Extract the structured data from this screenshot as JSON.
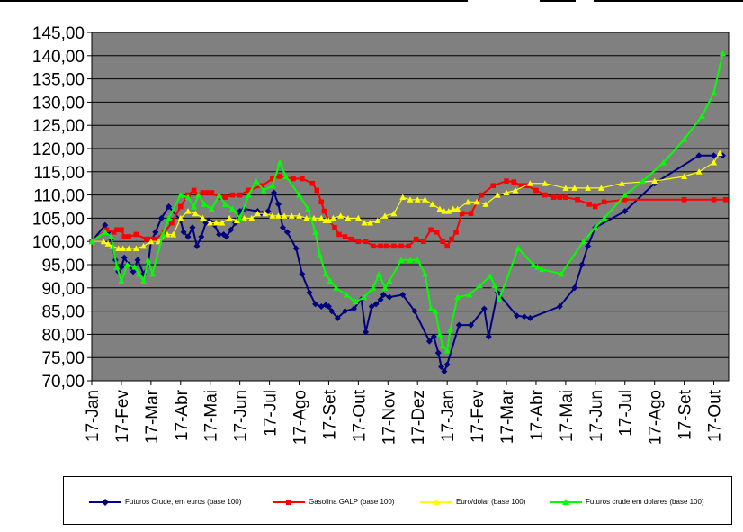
{
  "chart_data": {
    "type": "line",
    "title": "",
    "xlabel": "",
    "ylabel": "",
    "ylim": [
      70,
      145
    ],
    "yticks": [
      "70,00",
      "75,00",
      "80,00",
      "85,00",
      "90,00",
      "95,00",
      "100,00",
      "105,00",
      "110,00",
      "115,00",
      "120,00",
      "125,00",
      "130,00",
      "135,00",
      "140,00",
      "145,00"
    ],
    "xlim": [
      0,
      21.5
    ],
    "xticks": [
      "17-Jan",
      "17-Fev",
      "17-Mar",
      "17-Abr",
      "17-Mai",
      "17-Jun",
      "17-Jul",
      "17-Ago",
      "17-Set",
      "17-Out",
      "17-Nov",
      "17-Dez",
      "17-Jan",
      "17-Fev",
      "17-Mar",
      "17-Abr",
      "17-Mai",
      "17-Jun",
      "17-Jul",
      "17-Ago",
      "17-Set",
      "17-Out"
    ],
    "grid": true,
    "legend_position": "bottom",
    "series": [
      {
        "name": "Futuros Crude, em euros (base 100)",
        "color": "#000080",
        "marker": "diamond",
        "x": [
          0,
          0.45,
          0.55,
          0.65,
          0.8,
          0.9,
          1.0,
          1.1,
          1.25,
          1.4,
          1.55,
          1.75,
          1.9,
          2.0,
          2.15,
          2.35,
          2.6,
          3.0,
          3.1,
          3.25,
          3.4,
          3.55,
          3.7,
          3.85,
          3.95,
          4.05,
          4.15,
          4.3,
          4.45,
          4.55,
          4.7,
          4.85,
          5.0,
          5.15,
          5.6,
          5.75,
          5.95,
          6.15,
          6.3,
          6.45,
          6.6,
          6.9,
          7.1,
          7.35,
          7.55,
          7.75,
          7.9,
          8.0,
          8.1,
          8.3,
          8.55,
          8.85,
          9.1,
          9.25,
          9.45,
          9.6,
          9.75,
          9.85,
          10.05,
          10.5,
          10.9,
          11.4,
          11.55,
          11.7,
          11.8,
          11.9,
          12.0,
          12.4,
          12.8,
          13.25,
          13.4,
          13.7,
          14.35,
          14.6,
          14.8,
          15.8,
          16.3,
          16.55,
          16.75,
          17.0,
          18.0,
          19.0,
          20.5,
          21.0,
          21.3
        ],
        "y": [
          100,
          103.5,
          102,
          100.5,
          96,
          93.5,
          94.5,
          96.5,
          95,
          93.5,
          96,
          93,
          95,
          100,
          102,
          105,
          107.5,
          104.5,
          102,
          101,
          103,
          99,
          101,
          104,
          104.5,
          104,
          103.5,
          101.5,
          101.5,
          101,
          102.5,
          104,
          106.5,
          107,
          106.5,
          106,
          106.5,
          110.5,
          108,
          103,
          102,
          98.5,
          93,
          89,
          86.5,
          86,
          86.3,
          86,
          85,
          83.5,
          85,
          85.5,
          87.5,
          80.5,
          86,
          86.5,
          87.5,
          88.5,
          88,
          88.5,
          85,
          78.5,
          79.5,
          76,
          73,
          72,
          73.5,
          82,
          82,
          85.5,
          79.5,
          89,
          84,
          83.8,
          83.5,
          86,
          90,
          95,
          99,
          103,
          106.5,
          112.5,
          118.5,
          118.5,
          118.5
        ]
      },
      {
        "name": "Gasolina GALP (base 100)",
        "color": "#ff0000",
        "marker": "square",
        "x": [
          0,
          0.5,
          0.75,
          0.85,
          1.0,
          1.1,
          1.25,
          1.5,
          1.85,
          2.0,
          2.15,
          2.45,
          2.7,
          3.0,
          3.25,
          3.45,
          3.6,
          3.75,
          3.9,
          4.05,
          4.3,
          4.5,
          4.75,
          5.0,
          5.3,
          5.75,
          6.1,
          6.35,
          6.8,
          7.1,
          7.45,
          7.6,
          7.75,
          7.85,
          8.0,
          8.2,
          8.35,
          8.55,
          8.75,
          9.0,
          9.25,
          9.5,
          9.75,
          9.95,
          10.2,
          10.45,
          10.7,
          10.95,
          11.2,
          11.45,
          11.65,
          11.85,
          12.0,
          12.15,
          12.3,
          12.5,
          12.8,
          13.15,
          13.55,
          14.0,
          14.25,
          14.5,
          14.7,
          15.0,
          15.3,
          15.6,
          15.8,
          16.0,
          16.4,
          16.8,
          17.0,
          17.3,
          18.0,
          20.0,
          21.0,
          21.4
        ],
        "y": [
          100,
          102.5,
          102,
          102.5,
          102.5,
          101,
          101,
          101.5,
          100.5,
          100.5,
          100.5,
          102,
          104,
          107.5,
          110,
          111,
          110,
          110.5,
          110.5,
          110.5,
          109.5,
          109.5,
          110,
          110,
          111,
          112,
          113.5,
          114,
          113.5,
          113.5,
          112.5,
          111,
          108.5,
          106.5,
          104.5,
          103,
          101.5,
          101,
          100.5,
          100,
          100,
          99,
          99,
          99,
          99,
          99,
          99,
          100.5,
          100,
          102.5,
          102,
          100,
          99,
          100.5,
          102,
          106,
          106,
          110,
          112,
          113,
          112.8,
          112,
          112,
          111,
          110,
          109.5,
          109.5,
          109.5,
          109,
          108,
          107.5,
          108.5,
          109,
          109,
          109,
          109
        ]
      },
      {
        "name": "Euro/dolar (base 100)",
        "color": "#ffff00",
        "marker": "triangle",
        "x": [
          0,
          0.4,
          0.55,
          0.7,
          0.9,
          1.05,
          1.25,
          1.5,
          1.75,
          2.0,
          2.25,
          2.55,
          2.75,
          3.0,
          3.25,
          3.5,
          3.75,
          4.0,
          4.2,
          4.4,
          4.65,
          4.9,
          5.15,
          5.4,
          5.6,
          5.85,
          6.1,
          6.3,
          6.5,
          6.75,
          7.0,
          7.25,
          7.5,
          7.75,
          7.9,
          8.0,
          8.15,
          8.4,
          8.65,
          9.0,
          9.2,
          9.4,
          9.65,
          9.9,
          10.2,
          10.5,
          10.75,
          11.0,
          11.25,
          11.5,
          11.75,
          11.9,
          12.05,
          12.2,
          12.35,
          12.7,
          13.0,
          13.3,
          13.7,
          14.0,
          14.3,
          14.8,
          15.3,
          16.0,
          16.3,
          16.75,
          17.2,
          17.9,
          19.0,
          20.0,
          20.5,
          21.0,
          21.2
        ],
        "y": [
          100,
          100,
          99.5,
          99,
          98.5,
          98.5,
          98.5,
          98.5,
          99,
          100,
          100,
          101.5,
          101.5,
          105,
          106.5,
          106,
          105,
          104,
          104,
          104,
          105,
          104.5,
          105,
          105,
          106,
          106,
          105.5,
          105.5,
          105.5,
          105.5,
          105.5,
          105,
          105,
          105,
          104.5,
          104.5,
          105,
          105.5,
          105,
          105,
          104,
          104,
          104.5,
          105.5,
          106,
          109.5,
          109,
          109,
          109,
          108,
          107,
          106.5,
          106.5,
          107,
          107,
          108.5,
          108.5,
          108,
          110,
          110.5,
          111,
          112.5,
          112.5,
          111.5,
          111.5,
          111.5,
          111.5,
          112.5,
          113,
          114,
          115,
          117,
          119
        ]
      },
      {
        "name": "Futuros crude em dolares (base 100)",
        "color": "#00ff00",
        "marker": "triangle",
        "x": [
          0,
          0.45,
          0.65,
          0.85,
          1.0,
          1.2,
          1.45,
          1.6,
          1.75,
          1.9,
          2.05,
          2.4,
          2.6,
          3.0,
          3.25,
          3.45,
          3.6,
          3.8,
          4.05,
          4.3,
          4.5,
          4.75,
          5.0,
          5.3,
          5.55,
          5.8,
          6.1,
          6.35,
          6.55,
          7.0,
          7.3,
          7.55,
          7.7,
          7.9,
          8.05,
          8.25,
          8.6,
          8.9,
          9.2,
          9.5,
          9.7,
          9.9,
          10.05,
          10.45,
          10.75,
          11.0,
          11.25,
          11.45,
          11.6,
          11.75,
          11.85,
          12.0,
          12.1,
          12.35,
          12.75,
          13.1,
          13.45,
          13.6,
          13.75,
          14.4,
          14.9,
          15.05,
          15.2,
          15.85,
          16.6,
          17.0,
          17.3,
          18.0,
          18.6,
          19.3,
          20.0,
          20.6,
          21.0,
          21.3
        ],
        "y": [
          100,
          102,
          101,
          94.5,
          91.5,
          95,
          94.5,
          93,
          91.5,
          96,
          93,
          101.5,
          105,
          110,
          109.5,
          107.5,
          110,
          108,
          107,
          110,
          108,
          107,
          105,
          110,
          113,
          111,
          112,
          117,
          114,
          110,
          107,
          102,
          97,
          93,
          91.5,
          90,
          88.5,
          87,
          88,
          90,
          93,
          90,
          91.5,
          96,
          96,
          96,
          93,
          85.5,
          85,
          80,
          77.5,
          76.5,
          81,
          88,
          88.5,
          90.5,
          92.5,
          90.5,
          87.5,
          98.5,
          95,
          94.5,
          94,
          93,
          100,
          103,
          105,
          110,
          113,
          117,
          122,
          127,
          132,
          140.5
        ]
      }
    ]
  }
}
